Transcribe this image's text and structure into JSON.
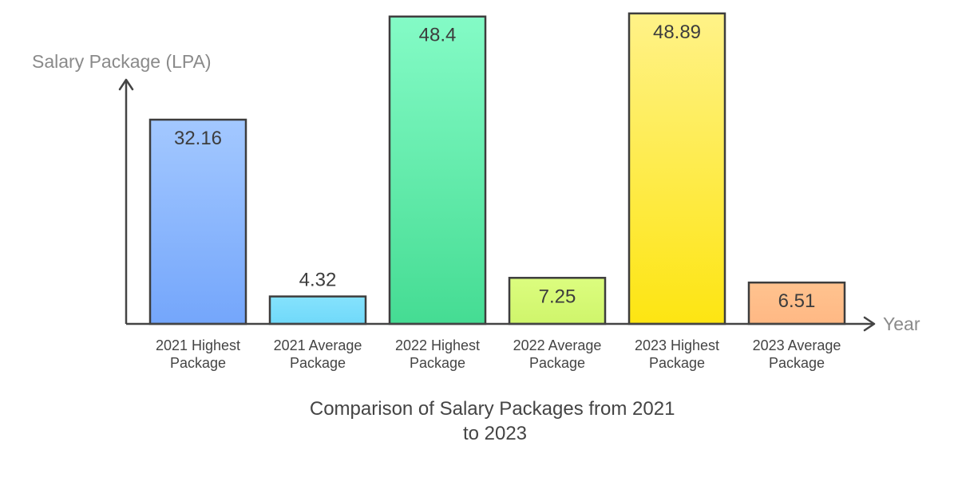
{
  "chart_data": {
    "type": "bar",
    "title_lines": [
      "Comparison of Salary Packages from 2021",
      "to 2023"
    ],
    "ylabel": "Salary Package (LPA)",
    "xlabel": "Year",
    "ylim": [
      0,
      50
    ],
    "grid": false,
    "categories": [
      [
        "2021 Highest",
        "Package"
      ],
      [
        "2021 Average",
        "Package"
      ],
      [
        "2022 Highest",
        "Package"
      ],
      [
        "2022 Average",
        "Package"
      ],
      [
        "2023 Highest",
        "Package"
      ],
      [
        "2023 Average",
        "Package"
      ]
    ],
    "values": [
      32.16,
      4.32,
      48.4,
      7.25,
      48.89,
      6.51
    ],
    "value_labels": [
      "32.16",
      "4.32",
      "48.4",
      "7.25",
      "48.89",
      "6.51"
    ],
    "colors": [
      [
        "#a3c8ff",
        "#74a6fb"
      ],
      [
        "#85e2fd",
        "#70d9fa"
      ],
      [
        "#84fbc6",
        "#45dc93"
      ],
      [
        "#dcfd7f",
        "#cff56b"
      ],
      [
        "#fff288",
        "#fde512"
      ],
      [
        "#ffc38f",
        "#ffb884"
      ]
    ],
    "axis_color": "#444444",
    "bar_stroke": "#3d3d3d"
  }
}
